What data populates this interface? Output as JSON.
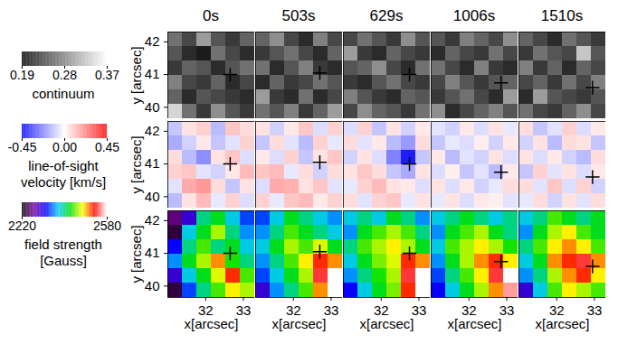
{
  "chart_data": {
    "type": "heatmap",
    "x_label": "x[arcsec]",
    "y_label": "y [arcsec]",
    "xlim": [
      31.0,
      33.3
    ],
    "ylim": [
      39.65,
      42.3
    ],
    "xticks": [
      32,
      33
    ],
    "yticks": [
      40,
      41,
      42
    ],
    "times": [
      "0s",
      "503s",
      "629s",
      "1006s",
      "1510s"
    ],
    "marker": "plus",
    "marker_x": [
      32.65,
      32.7,
      32.75,
      32.85,
      32.95
    ],
    "marker_y": [
      41.0,
      41.05,
      41.0,
      40.75,
      40.6
    ],
    "quantities": [
      {
        "label": [
          "continuum"
        ],
        "colors": [
          "#000000",
          "#ffffff"
        ],
        "color_range": [
          0.19,
          0.37
        ],
        "color_ticks": [
          0.19,
          0.28,
          0.37
        ],
        "cells": [
          [
            [
              0.27,
              0.24,
              0.3,
              0.25,
              0.23,
              0.26
            ],
            [
              0.25,
              0.22,
              0.21,
              0.27,
              0.24,
              0.22
            ],
            [
              0.23,
              0.26,
              0.25,
              0.22,
              0.25,
              0.27
            ],
            [
              0.28,
              0.24,
              0.23,
              0.26,
              0.22,
              0.24
            ],
            [
              0.26,
              0.22,
              0.25,
              0.24,
              0.23,
              0.22
            ],
            [
              0.34,
              0.27,
              0.23,
              0.29,
              0.25,
              0.23
            ]
          ],
          [
            [
              0.26,
              0.29,
              0.24,
              0.22,
              0.28,
              0.24
            ],
            [
              0.23,
              0.25,
              0.27,
              0.24,
              0.22,
              0.26
            ],
            [
              0.27,
              0.22,
              0.25,
              0.28,
              0.23,
              0.22
            ],
            [
              0.22,
              0.26,
              0.23,
              0.24,
              0.27,
              0.25
            ],
            [
              0.3,
              0.23,
              0.22,
              0.27,
              0.22,
              0.24
            ],
            [
              0.27,
              0.25,
              0.28,
              0.23,
              0.26,
              0.3
            ]
          ],
          [
            [
              0.24,
              0.27,
              0.25,
              0.23,
              0.29,
              0.25
            ],
            [
              0.3,
              0.23,
              0.22,
              0.26,
              0.24,
              0.23
            ],
            [
              0.25,
              0.26,
              0.29,
              0.24,
              0.22,
              0.27
            ],
            [
              0.23,
              0.22,
              0.25,
              0.27,
              0.24,
              0.23
            ],
            [
              0.28,
              0.25,
              0.23,
              0.22,
              0.26,
              0.25
            ],
            [
              0.24,
              0.29,
              0.26,
              0.25,
              0.23,
              0.27
            ]
          ],
          [
            [
              0.25,
              0.23,
              0.28,
              0.26,
              0.24,
              0.29
            ],
            [
              0.22,
              0.26,
              0.24,
              0.23,
              0.27,
              0.24
            ],
            [
              0.27,
              0.24,
              0.22,
              0.28,
              0.23,
              0.22
            ],
            [
              0.24,
              0.28,
              0.25,
              0.23,
              0.25,
              0.26
            ],
            [
              0.23,
              0.25,
              0.27,
              0.24,
              0.22,
              0.3
            ],
            [
              0.29,
              0.22,
              0.24,
              0.26,
              0.28,
              0.25
            ]
          ],
          [
            [
              0.26,
              0.24,
              0.22,
              0.27,
              0.25,
              0.23
            ],
            [
              0.23,
              0.27,
              0.25,
              0.24,
              0.33,
              0.25
            ],
            [
              0.28,
              0.23,
              0.26,
              0.22,
              0.26,
              0.24
            ],
            [
              0.24,
              0.26,
              0.23,
              0.27,
              0.24,
              0.28
            ],
            [
              0.22,
              0.3,
              0.25,
              0.24,
              0.23,
              0.25
            ],
            [
              0.27,
              0.24,
              0.23,
              0.26,
              0.29,
              0.24
            ]
          ]
        ]
      },
      {
        "label": [
          "line-of-sight",
          "velocity [km/s]"
        ],
        "colors": [
          "#0000ff",
          "#ffffff",
          "#ff0000"
        ],
        "color_range": [
          -0.45,
          0.45
        ],
        "color_ticks": [
          -0.45,
          {
            "value": 0,
            "label": "0.00"
          },
          0.45
        ],
        "cells": [
          [
            [
              -0.1,
              0.05,
              0.08,
              -0.12,
              0.1,
              0.06
            ],
            [
              -0.15,
              -0.08,
              0.04,
              -0.1,
              -0.05,
              0.08
            ],
            [
              0.06,
              -0.12,
              -0.2,
              0.05,
              0.1,
              -0.06
            ],
            [
              0.08,
              0.1,
              -0.05,
              -0.08,
              0.04,
              0.12
            ],
            [
              -0.05,
              0.15,
              0.18,
              0.06,
              -0.1,
              0.05
            ],
            [
              -0.12,
              0.05,
              0.12,
              -0.04,
              0.08,
              -0.06
            ]
          ],
          [
            [
              0.05,
              -0.08,
              0.04,
              0.1,
              -0.06,
              0.08
            ],
            [
              -0.1,
              0.06,
              -0.05,
              -0.12,
              0.08,
              -0.04
            ],
            [
              0.04,
              -0.06,
              0.08,
              -0.1,
              0.05,
              0.1
            ],
            [
              0.1,
              0.12,
              -0.04,
              0.06,
              -0.08,
              0.06
            ],
            [
              -0.06,
              0.15,
              0.14,
              0.05,
              0.1,
              -0.05
            ],
            [
              0.08,
              -0.04,
              0.1,
              0.12,
              0.04,
              0.08
            ]
          ],
          [
            [
              -0.06,
              0.08,
              -0.1,
              0.05,
              -0.08,
              0.04
            ],
            [
              0.06,
              -0.05,
              0.04,
              -0.12,
              -0.18,
              0.06
            ],
            [
              -0.08,
              0.05,
              -0.06,
              -0.22,
              -0.4,
              -0.1
            ],
            [
              0.05,
              0.1,
              0.06,
              -0.1,
              -0.15,
              0.05
            ],
            [
              -0.04,
              0.08,
              0.12,
              0.05,
              0.04,
              -0.06
            ],
            [
              0.06,
              -0.05,
              0.08,
              0.1,
              -0.04,
              0.05
            ]
          ],
          [
            [
              -0.05,
              -0.08,
              0.04,
              -0.06,
              0.05,
              -0.04
            ],
            [
              -0.1,
              -0.04,
              -0.06,
              0.03,
              -0.08,
              0.04
            ],
            [
              0.04,
              -0.12,
              -0.05,
              -0.08,
              0.05,
              -0.06
            ],
            [
              -0.06,
              0.03,
              -0.1,
              -0.05,
              -0.12,
              0.04
            ],
            [
              0.05,
              -0.06,
              0.04,
              -0.08,
              -0.04,
              0.06
            ],
            [
              -0.04,
              0.05,
              -0.06,
              0.04,
              0.03,
              -0.05
            ]
          ],
          [
            [
              0.06,
              -0.1,
              -0.05,
              0.08,
              -0.06,
              0.04
            ],
            [
              -0.08,
              0.05,
              -0.12,
              0.06,
              0.05,
              -0.1
            ],
            [
              0.05,
              -0.06,
              0.04,
              -0.08,
              -0.12,
              0.06
            ],
            [
              -0.1,
              0.08,
              -0.05,
              0.05,
              -0.06,
              0.04
            ],
            [
              0.06,
              -0.05,
              0.1,
              -0.06,
              0.08,
              -0.08
            ],
            [
              -0.04,
              0.06,
              -0.08,
              0.05,
              -0.05,
              0.06
            ]
          ]
        ]
      },
      {
        "label": [
          "field strength",
          "[Gauss]"
        ],
        "colors": [
          "#000000",
          "#7a00a0",
          "#0000ff",
          "#00c8ff",
          "#00e000",
          "#ffff00",
          "#ff0000",
          "#ffffff"
        ],
        "color_range": [
          2220,
          2580
        ],
        "color_ticks": [
          2220,
          2580
        ],
        "cells": [
          [
            [
              2260,
              2300,
              2400,
              2420,
              2380,
              2340
            ],
            [
              2240,
              2380,
              2420,
              2460,
              2400,
              2360
            ],
            [
              2320,
              2400,
              2440,
              2400,
              2420,
              2380
            ],
            [
              2360,
              2420,
              2460,
              2500,
              2430,
              2400
            ],
            [
              2300,
              2380,
              2420,
              2470,
              2520,
              2440
            ],
            [
              2240,
              2340,
              2400,
              2440,
              2480,
              2460
            ]
          ],
          [
            [
              2340,
              2380,
              2420,
              2400,
              2380,
              2360
            ],
            [
              2360,
              2400,
              2440,
              2420,
              2400,
              2380
            ],
            [
              2380,
              2420,
              2460,
              2440,
              2470,
              2420
            ],
            [
              2360,
              2400,
              2440,
              2480,
              2520,
              2500
            ],
            [
              2340,
              2380,
              2420,
              2460,
              2540,
              2580
            ],
            [
              2300,
              2360,
              2400,
              2440,
              2500,
              2580
            ]
          ],
          [
            [
              2380,
              2400,
              2380,
              2420,
              2400,
              2360
            ],
            [
              2360,
              2420,
              2440,
              2460,
              2440,
              2400
            ],
            [
              2400,
              2440,
              2460,
              2480,
              2460,
              2420
            ],
            [
              2380,
              2420,
              2450,
              2470,
              2520,
              2500
            ],
            [
              2360,
              2400,
              2430,
              2460,
              2540,
              2580
            ],
            [
              2320,
              2380,
              2420,
              2450,
              2520,
              2580
            ]
          ],
          [
            [
              2380,
              2400,
              2420,
              2400,
              2380,
              2400
            ],
            [
              2360,
              2420,
              2440,
              2460,
              2420,
              2400
            ],
            [
              2380,
              2440,
              2460,
              2480,
              2460,
              2430
            ],
            [
              2360,
              2420,
              2460,
              2500,
              2520,
              2480
            ],
            [
              2340,
              2400,
              2440,
              2480,
              2540,
              2580
            ],
            [
              2320,
              2380,
              2420,
              2460,
              2500,
              2560
            ]
          ],
          [
            [
              2380,
              2400,
              2440,
              2420,
              2400,
              2420
            ],
            [
              2360,
              2420,
              2460,
              2480,
              2440,
              2420
            ],
            [
              2400,
              2440,
              2480,
              2500,
              2480,
              2440
            ],
            [
              2380,
              2420,
              2500,
              2520,
              2540,
              2500
            ],
            [
              2360,
              2400,
              2460,
              2500,
              2520,
              2480
            ],
            [
              2300,
              2380,
              2440,
              2480,
              2460,
              2440
            ]
          ]
        ]
      }
    ]
  }
}
